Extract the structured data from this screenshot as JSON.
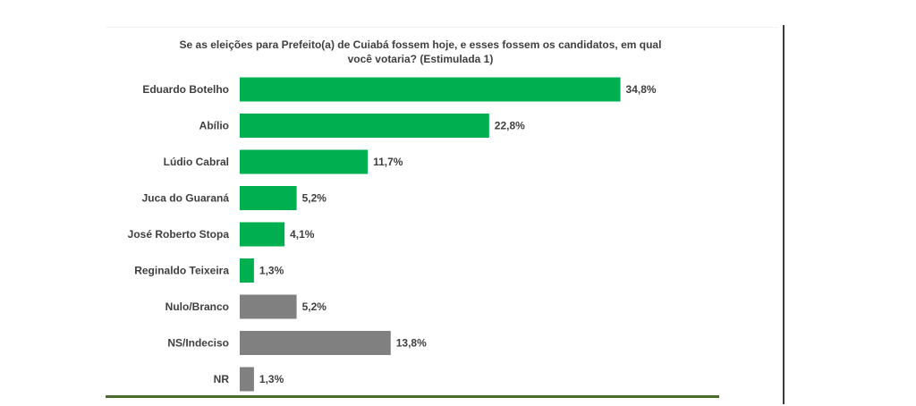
{
  "chart_data": {
    "type": "bar",
    "orientation": "horizontal",
    "title_lines": [
      "Se as eleições para Prefeito(a) de Cuiabá fossem hoje, e esses fossem os candidatos, em qual",
      "você votaria? (Estimulada 1)"
    ],
    "categories": [
      "Eduardo Botelho",
      "Abílio",
      "Lúdio Cabral",
      "Juca do Guaraná",
      "José Roberto Stopa",
      "Reginaldo Teixeira",
      "Nulo/Branco",
      "NS/Indeciso",
      "NR"
    ],
    "values": [
      34.8,
      22.8,
      11.7,
      5.2,
      4.1,
      1.3,
      5.2,
      13.8,
      1.3
    ],
    "value_labels": [
      "34,8%",
      "22,8%",
      "11,7%",
      "5,2%",
      "4,1%",
      "1,3%",
      "5,2%",
      "13,8%",
      "1,3%"
    ],
    "bar_colors": [
      "#00b050",
      "#00b050",
      "#00b050",
      "#00b050",
      "#00b050",
      "#00b050",
      "#808080",
      "#808080",
      "#808080"
    ],
    "xlim": [
      0,
      35
    ],
    "grid": false,
    "legend": "none"
  }
}
